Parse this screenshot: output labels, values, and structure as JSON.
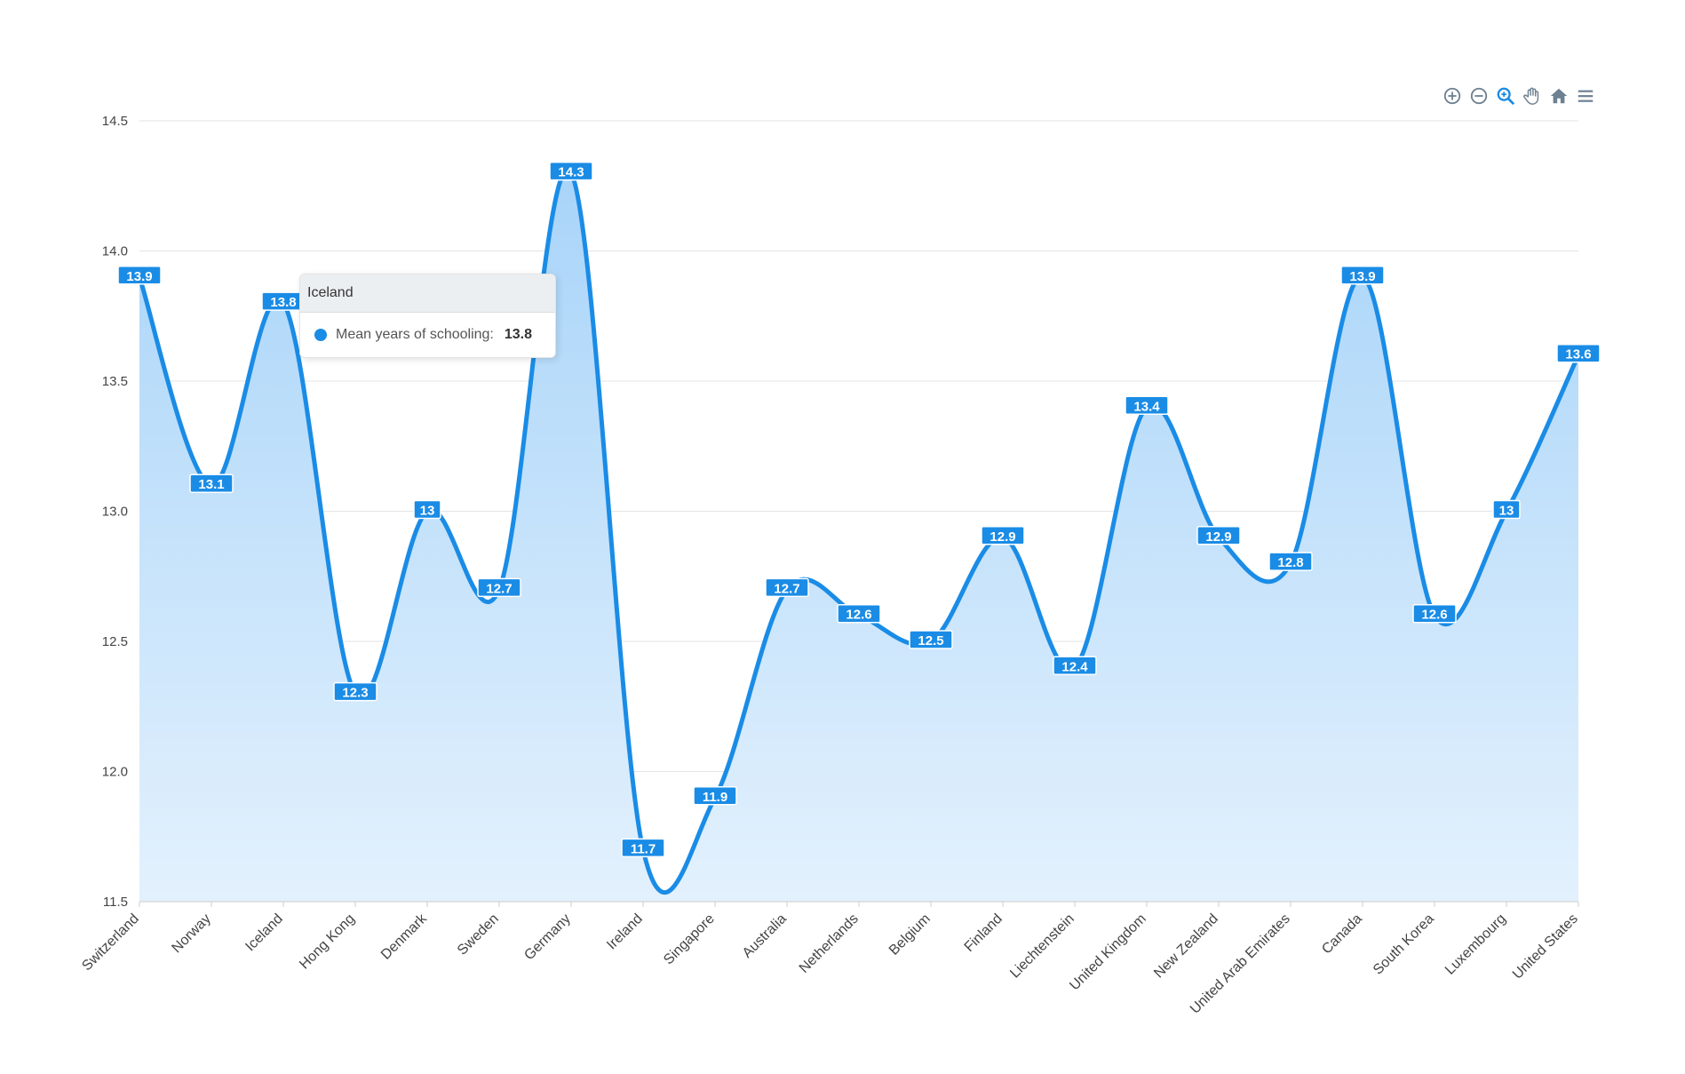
{
  "toolbar": {
    "icons": [
      "zoom-in-icon",
      "zoom-out-icon",
      "zoom-select-icon",
      "pan-hand-icon",
      "home-reset-icon",
      "menu-icon"
    ]
  },
  "tooltip": {
    "title": "Iceland",
    "series_label": "Mean years of schooling:",
    "value": "13.8"
  },
  "chart_data": {
    "type": "area",
    "curve": "smooth",
    "title": "",
    "xlabel": "",
    "ylabel": "",
    "ylim": [
      11.5,
      14.5
    ],
    "yticks": [
      "11.5",
      "12.0",
      "12.5",
      "13.0",
      "13.5",
      "14.0",
      "14.5"
    ],
    "grid": true,
    "categories": [
      "Switzerland",
      "Norway",
      "Iceland",
      "Hong Kong",
      "Denmark",
      "Sweden",
      "Germany",
      "Ireland",
      "Singapore",
      "Australia",
      "Netherlands",
      "Belgium",
      "Finland",
      "Liechtenstein",
      "United Kingdom",
      "New Zealand",
      "United Arab Emirates",
      "Canada",
      "South Korea",
      "Luxembourg",
      "United States"
    ],
    "series": [
      {
        "name": "Mean years of schooling",
        "values": [
          13.9,
          13.1,
          13.8,
          12.3,
          13,
          12.7,
          14.3,
          11.7,
          11.9,
          12.7,
          12.6,
          12.5,
          12.9,
          12.4,
          13.4,
          12.9,
          12.8,
          13.9,
          12.6,
          13,
          13.6
        ],
        "labels": [
          "13.9",
          "13.1",
          "13.8",
          "12.3",
          "13",
          "12.7",
          "14.3",
          "11.7",
          "11.9",
          "12.7",
          "12.6",
          "12.5",
          "12.9",
          "12.4",
          "13.4",
          "12.9",
          "12.8",
          "13.9",
          "12.6",
          "13",
          "13.6"
        ]
      }
    ],
    "colors": {
      "line": "#1a8ce6",
      "fill_top": "#a8d4f9",
      "fill_bottom": "#e3f1fd",
      "label_bg": "#1a8ce6",
      "label_text": "#ffffff",
      "grid": "#e4e4e4",
      "axis_text": "#444444",
      "toolbar_icon": "#6e8192",
      "toolbar_active": "#1a8ce6"
    }
  }
}
